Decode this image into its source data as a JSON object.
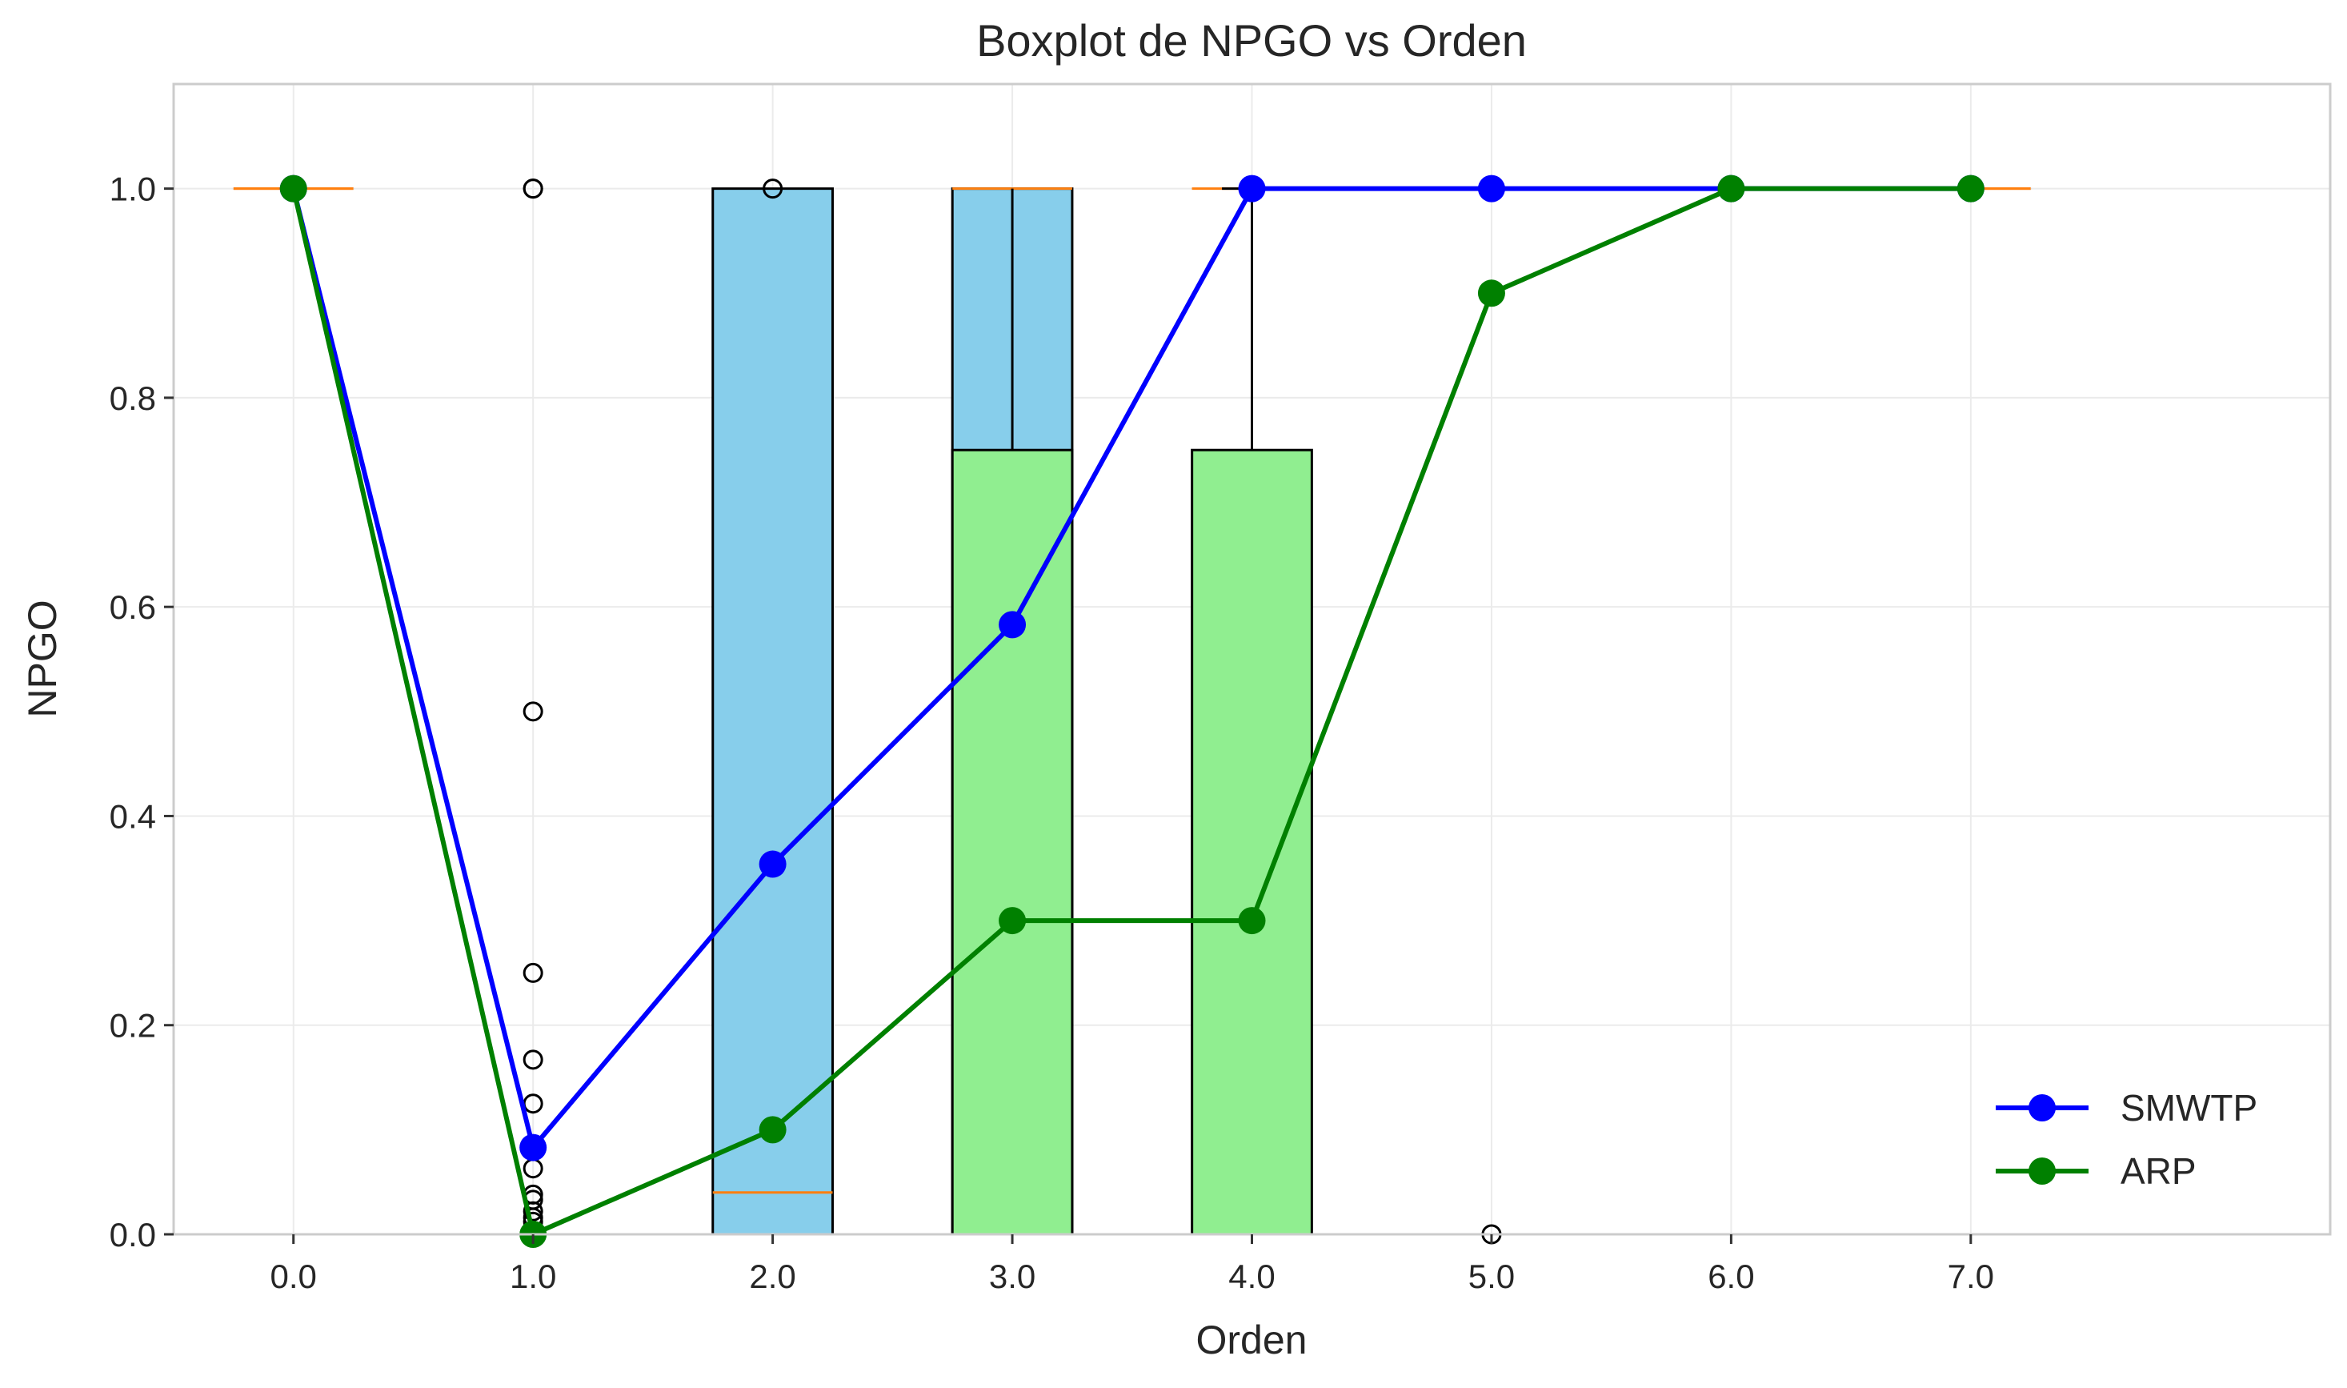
{
  "chart_data": {
    "type": "box",
    "title": "Boxplot de NPGO vs Orden",
    "xlabel": "Orden",
    "ylabel": "NPGO",
    "xlim": [
      -0.5,
      8.5
    ],
    "ylim": [
      0.0,
      1.1
    ],
    "grid": true,
    "legend_position": "lower-right",
    "x_ticks": [
      0,
      1,
      2,
      3,
      4,
      5,
      6,
      7
    ],
    "x_tick_labels": [
      "0.0",
      "1.0",
      "2.0",
      "3.0",
      "4.0",
      "5.0",
      "6.0",
      "7.0"
    ],
    "y_ticks": [
      0.0,
      0.2,
      0.4,
      0.6,
      0.8,
      1.0
    ],
    "y_tick_labels": [
      "0.0",
      "0.2",
      "0.4",
      "0.6",
      "0.8",
      "1.0"
    ],
    "boxes": [
      {
        "name": "SMWTP",
        "color": "#87ceeb",
        "offset": 0,
        "stats": [
          {
            "x": 0,
            "q1": 1.0,
            "median": 1.0,
            "q3": 1.0,
            "whislo": 1.0,
            "whishi": 1.0
          },
          {
            "x": 1,
            "q1": 0.0,
            "median": 0.0,
            "q3": 0.0,
            "whislo": 0.0,
            "whishi": 0.0
          },
          {
            "x": 2,
            "q1": 0.0,
            "median": 0.04,
            "q3": 1.0,
            "whislo": 0.0,
            "whishi": 1.0
          },
          {
            "x": 3,
            "q1": 0.0,
            "median": 1.0,
            "q3": 1.0,
            "whislo": 0.0,
            "whishi": 1.0
          },
          {
            "x": 4,
            "q1": 1.0,
            "median": 1.0,
            "q3": 1.0,
            "whislo": 1.0,
            "whishi": 1.0
          },
          {
            "x": 5,
            "q1": 1.0,
            "median": 1.0,
            "q3": 1.0,
            "whislo": 1.0,
            "whishi": 1.0
          },
          {
            "x": 6,
            "q1": 1.0,
            "median": 1.0,
            "q3": 1.0,
            "whislo": 1.0,
            "whishi": 1.0
          },
          {
            "x": 7,
            "q1": 1.0,
            "median": 1.0,
            "q3": 1.0,
            "whislo": 1.0,
            "whishi": 1.0
          }
        ]
      },
      {
        "name": "ARP",
        "color": "#90ee90",
        "offset": 0,
        "stats": [
          {
            "x": 0,
            "q1": 1.0,
            "median": 1.0,
            "q3": 1.0,
            "whislo": 1.0,
            "whishi": 1.0
          },
          {
            "x": 1,
            "q1": 0.0,
            "median": 0.0,
            "q3": 0.0,
            "whislo": 0.0,
            "whishi": 0.0
          },
          {
            "x": 2,
            "q1": 0.0,
            "median": 0.0,
            "q3": 0.0,
            "whislo": 0.0,
            "whishi": 0.0
          },
          {
            "x": 3,
            "q1": 0.0,
            "median": 0.0,
            "q3": 0.75,
            "whislo": 0.0,
            "whishi": 0.75
          },
          {
            "x": 4,
            "q1": 0.0,
            "median": 0.0,
            "q3": 0.75,
            "whislo": 0.0,
            "whishi": 1.0
          },
          {
            "x": 5,
            "q1": 1.0,
            "median": 1.0,
            "q3": 1.0,
            "whislo": 1.0,
            "whishi": 1.0
          },
          {
            "x": 6,
            "q1": 1.0,
            "median": 1.0,
            "q3": 1.0,
            "whislo": 1.0,
            "whishi": 1.0
          },
          {
            "x": 7,
            "q1": 1.0,
            "median": 1.0,
            "q3": 1.0,
            "whislo": 1.0,
            "whishi": 1.0
          }
        ]
      }
    ],
    "center_line": {
      "x": 3,
      "y0": 0.75,
      "y1": 1.0
    },
    "outliers": [
      {
        "x": 1,
        "y": 1.0
      },
      {
        "x": 1,
        "y": 1.0
      },
      {
        "x": 1,
        "y": 0.5
      },
      {
        "x": 1,
        "y": 0.25
      },
      {
        "x": 1,
        "y": 0.167
      },
      {
        "x": 1,
        "y": 0.125
      },
      {
        "x": 1,
        "y": 0.063
      },
      {
        "x": 1,
        "y": 0.038
      },
      {
        "x": 1,
        "y": 0.033
      },
      {
        "x": 1,
        "y": 0.022
      },
      {
        "x": 1,
        "y": 0.016
      },
      {
        "x": 1,
        "y": 0.012
      },
      {
        "x": 2,
        "y": 1.0
      },
      {
        "x": 5,
        "y": 0.0
      }
    ],
    "series": [
      {
        "name": "SMWTP",
        "color": "#0000ff",
        "x": [
          0,
          1,
          2,
          3,
          4,
          5,
          6,
          7
        ],
        "values": [
          1.0,
          0.083,
          0.354,
          0.583,
          1.0,
          1.0,
          1.0,
          1.0
        ]
      },
      {
        "name": "ARP",
        "color": "#008000",
        "x": [
          0,
          1,
          2,
          3,
          4,
          5,
          6,
          7
        ],
        "values": [
          1.0,
          0.0,
          0.1,
          0.3,
          0.3,
          0.9,
          1.0,
          1.0
        ]
      }
    ],
    "colors": {
      "median": "#ff7f0e",
      "box_edge": "#000000",
      "grid": "#ebebeb",
      "spine": "#cccccc",
      "background": "#ffffff"
    }
  }
}
